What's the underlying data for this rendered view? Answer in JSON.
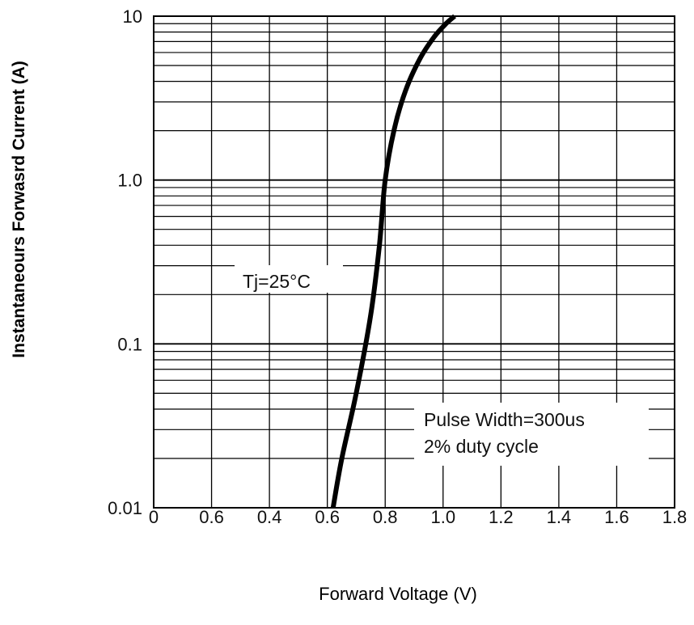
{
  "chart_data": {
    "type": "line",
    "xlabel": "Forward Voltage (V)",
    "ylabel": "Instantaneours Forwasrd Current (A)",
    "x_tick_labels": [
      "0",
      "0.6",
      "0.4",
      "0.6",
      "0.8",
      "1.0",
      "1.2",
      "1.4",
      "1.6",
      "1.8"
    ],
    "y_tick_labels": [
      "10",
      "1.0",
      "0.1",
      "0.01"
    ],
    "xlim": [
      0.4,
      1.8
    ],
    "ylim": [
      0.01,
      10
    ],
    "y_scale": "log",
    "grid": true,
    "series": [
      {
        "x": [
          0.62,
          0.65,
          0.7,
          0.75,
          0.78,
          0.8,
          0.83,
          0.87,
          0.92,
          0.97,
          1.01,
          1.04
        ],
        "y": [
          0.01,
          0.02,
          0.05,
          0.15,
          0.4,
          1.0,
          2.0,
          3.5,
          5.5,
          7.5,
          9.0,
          10.0
        ]
      }
    ],
    "annotations": [
      {
        "text": "Tj=25°C"
      },
      {
        "text": "Pulse Width=300us"
      },
      {
        "text": "2% duty cycle"
      }
    ]
  }
}
